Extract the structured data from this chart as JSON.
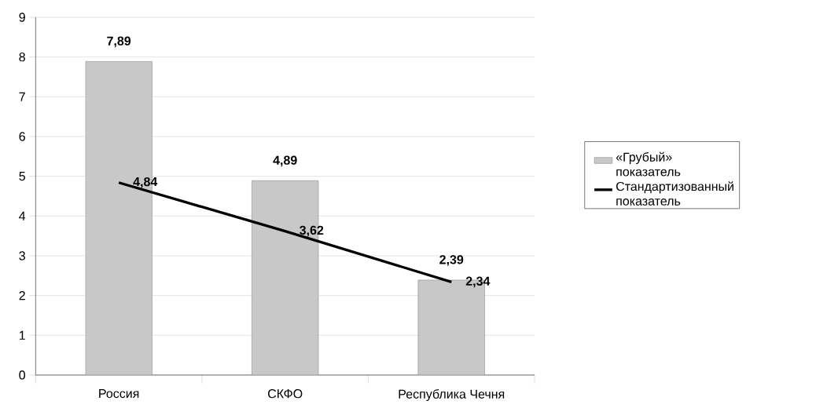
{
  "chart_data": {
    "type": "bar",
    "categories": [
      "Россия",
      "СКФО",
      "Республика Чечня"
    ],
    "series": [
      {
        "name": "«Грубый» показатель",
        "color": "#c8c8c8",
        "values": [
          7.89,
          4.89,
          2.39
        ],
        "value_labels": [
          "7,89",
          "4,89",
          "2,39"
        ]
      },
      {
        "name": "Стандартизованный показатель",
        "type": "line",
        "color": "#000000",
        "values": [
          4.84,
          3.62,
          2.34
        ],
        "value_labels": [
          "4,84",
          "3,62",
          "2,34"
        ]
      }
    ],
    "ylim": [
      0,
      9
    ],
    "yticks": [
      0,
      1,
      2,
      3,
      4,
      5,
      6,
      7,
      8,
      9
    ],
    "grid": "y",
    "legend": "right",
    "marker": "none",
    "line_style": "solid"
  }
}
